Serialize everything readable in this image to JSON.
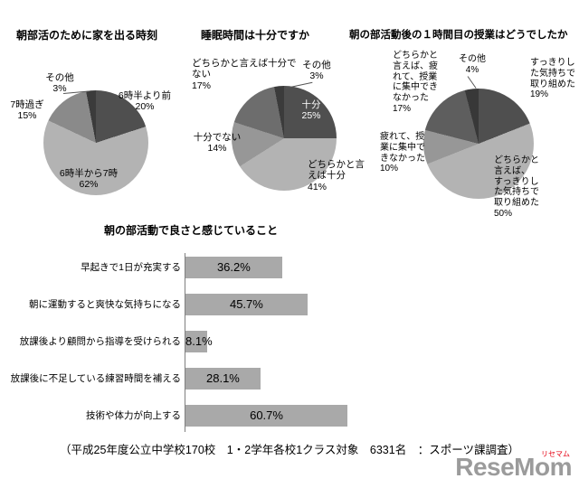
{
  "page": {
    "footer": "（平成25年度公立中学校170校　1・2学年各校1クラス対象　6331名　：スポーツ課調査）",
    "logo": {
      "text": "ReseMom",
      "ruby": "リセマム"
    }
  },
  "chart_data": [
    {
      "type": "pie",
      "title": "朝部活のために家を出る時刻",
      "labels": [
        "6時半より前",
        "6時半から7時",
        "7時過ぎ",
        "その他"
      ],
      "values": [
        20,
        62,
        15,
        3
      ],
      "colors": [
        "#4f4f4f",
        "#b3b3b3",
        "#8a8a8a",
        "#3b3b3b"
      ],
      "start_angle": "top",
      "direction": "clockwise",
      "legend": "none"
    },
    {
      "type": "pie",
      "title": "睡眠時間は十分ですか",
      "labels": [
        "十分",
        "どちらかと言\nえば十分",
        "十分でない",
        "どちらかと言えば十分で\nない",
        "その他"
      ],
      "values": [
        25,
        41,
        14,
        17,
        3
      ],
      "colors": [
        "#4f4f4f",
        "#b3b3b3",
        "#979797",
        "#6d6d6d",
        "#3b3b3b"
      ],
      "start_angle": "top",
      "direction": "clockwise",
      "legend": "none"
    },
    {
      "type": "pie",
      "title": "朝の部活動後の１時間目の授業はどうでしたか",
      "labels": [
        "すっきりし\nた気持ちで\n取り組めた",
        "どちらかと\n言えば、\nすっきりし\nた気持ちで\n取り組めた",
        "疲れて、授\n業に集中で\nきなかった",
        "どちらかと\n言えば、疲\nれて、授業\nに集中でき\nなかった",
        "その他"
      ],
      "values": [
        19,
        50,
        10,
        17,
        4
      ],
      "colors": [
        "#4f4f4f",
        "#b3b3b3",
        "#979797",
        "#5e5e5e",
        "#383838"
      ],
      "start_angle": "top",
      "direction": "clockwise",
      "legend": "none"
    },
    {
      "type": "bar",
      "title": "朝の部活動で良さと感じていること",
      "categories": [
        "早起きで1日が充実する",
        "朝に運動すると爽快な気持ちになる",
        "放課後より顧問から指導を受けられる",
        "放課後に不足している練習時間を補える",
        "技術や体力が向上する"
      ],
      "values": [
        36.2,
        45.7,
        8.1,
        28.1,
        60.7
      ],
      "xlim": [
        0,
        100
      ],
      "bar_color": "#a9a9a9",
      "value_suffix": "%",
      "value_labels_position": "center",
      "orientation": "horizontal",
      "grid": "off"
    }
  ]
}
